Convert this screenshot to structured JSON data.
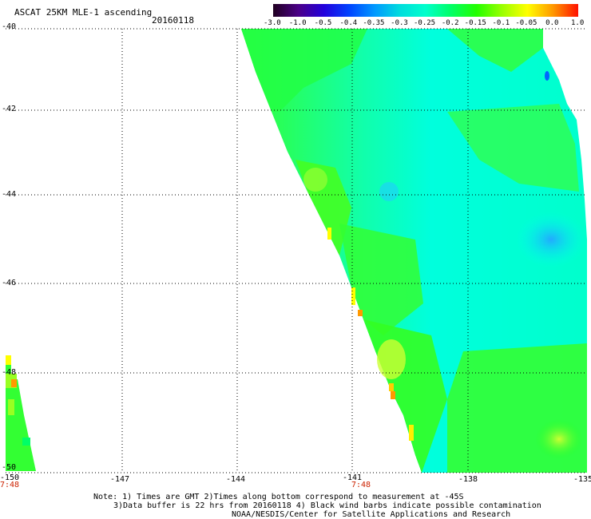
{
  "header": {
    "title": "ASCAT 25KM MLE-1 ascending",
    "date": "20160118"
  },
  "colorbar": {
    "labels": [
      "-3.0",
      "-1.0",
      "-0.5",
      "-0.4",
      "-0.35",
      "-0.3",
      "-0.25",
      "-0.2",
      "-0.15",
      "-0.1",
      "-0.05",
      "0.0",
      "1.0"
    ],
    "colors": [
      "#200020",
      "#4b0088",
      "#2200dd",
      "#0044ff",
      "#0099ff",
      "#00dddd",
      "#00ffcc",
      "#00ff66",
      "#22ff00",
      "#99ff00",
      "#ffff00",
      "#ff9900",
      "#ff1100"
    ]
  },
  "axes": {
    "lat_labels": [
      "-40",
      "-42",
      "-44",
      "-46",
      "-48",
      "-50"
    ],
    "lon_labels": [
      "-150",
      "-147",
      "-144",
      "-141",
      "-138",
      "-135"
    ],
    "time_labels": [
      "7:48",
      "7:48"
    ]
  },
  "notes": {
    "line1": "Note: 1) Times are GMT 2)Times along bottom correspond to measurement at -45S",
    "line2": "3)Data buffer is 22 hrs from 20160118 4) Black wind barbs indicate possible contamination",
    "line3": "NOAA/NESDIS/Center for Satellite Applications and Research"
  }
}
